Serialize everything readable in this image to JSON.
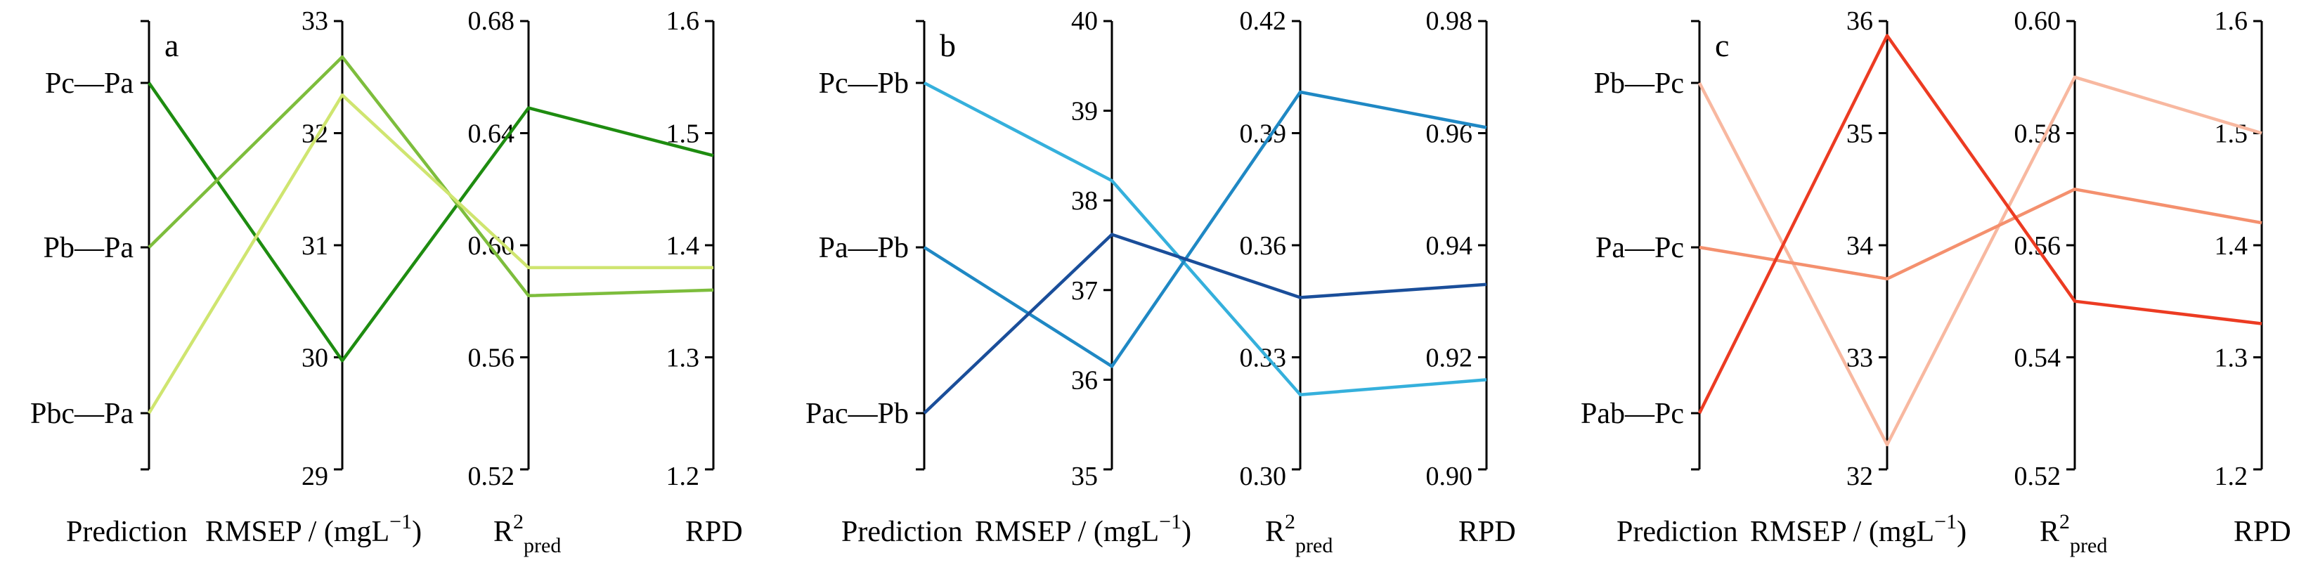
{
  "chart_data": [
    {
      "type": "parallel_coordinates",
      "panel_label": "a",
      "axes": [
        {
          "name": "Prediction",
          "label_text": "Prediction",
          "categorical": true,
          "categories_top_to_bottom": [
            "Pc—Pa",
            "Pb—Pa",
            "Pbc—Pa"
          ]
        },
        {
          "name": "RMSEP",
          "label_text": "RMSEP / (mgL",
          "label_sup": "−1",
          "label_tail": ")",
          "range": [
            29,
            33
          ],
          "ticks": [
            "29",
            "30",
            "31",
            "32",
            "33"
          ],
          "tick_values": [
            29,
            30,
            31,
            32,
            33
          ],
          "tick_side": "left"
        },
        {
          "name": "R2pred",
          "label_main": "R",
          "label_sup": "2",
          "label_sub": "pred",
          "range": [
            0.52,
            0.68
          ],
          "ticks": [
            "0.52",
            "0.56",
            "0.60",
            "0.64",
            "0.68"
          ],
          "tick_values": [
            0.52,
            0.56,
            0.6,
            0.64,
            0.68
          ],
          "tick_side": "left"
        },
        {
          "name": "RPD",
          "label_text": "RPD",
          "range": [
            1.2,
            1.6
          ],
          "ticks": [
            "1.2",
            "1.3",
            "1.4",
            "1.5",
            "1.6"
          ],
          "tick_values": [
            1.2,
            1.3,
            1.4,
            1.5,
            1.6
          ],
          "tick_side": "left"
        }
      ],
      "series": [
        {
          "name": "Pc—Pa",
          "color": "#1e8c10",
          "values": [
            29.97,
            0.649,
            1.48
          ]
        },
        {
          "name": "Pb—Pa",
          "color": "#7dbd3c",
          "values": [
            32.68,
            0.582,
            1.36
          ]
        },
        {
          "name": "Pbc—Pa",
          "color": "#cfe570",
          "values": [
            32.34,
            0.592,
            1.38
          ]
        }
      ]
    },
    {
      "type": "parallel_coordinates",
      "panel_label": "b",
      "axes": [
        {
          "name": "Prediction",
          "label_text": "Prediction",
          "categorical": true,
          "categories_top_to_bottom": [
            "Pc—Pb",
            "Pa—Pb",
            "Pac—Pb"
          ]
        },
        {
          "name": "RMSEP",
          "label_text": "RMSEP / (mgL",
          "label_sup": "−1",
          "label_tail": ")",
          "range": [
            35,
            40
          ],
          "ticks": [
            "35",
            "36",
            "37",
            "38",
            "39",
            "40"
          ],
          "tick_values": [
            35,
            36,
            37,
            38,
            39,
            40
          ],
          "tick_side": "left"
        },
        {
          "name": "R2pred",
          "label_main": "R",
          "label_sup": "2",
          "label_sub": "pred",
          "range": [
            0.3,
            0.42
          ],
          "ticks": [
            "0.30",
            "0.33",
            "0.36",
            "0.39",
            "0.42"
          ],
          "tick_values": [
            0.3,
            0.33,
            0.36,
            0.39,
            0.42
          ],
          "tick_side": "left"
        },
        {
          "name": "RPD",
          "label_text": "RPD",
          "range": [
            0.9,
            0.98
          ],
          "ticks": [
            "0.90",
            "0.92",
            "0.94",
            "0.96",
            "0.98"
          ],
          "tick_values": [
            0.9,
            0.92,
            0.94,
            0.96,
            0.98
          ],
          "tick_side": "left"
        }
      ],
      "series": [
        {
          "name": "Pc—Pb",
          "color": "#35b0dc",
          "values": [
            38.22,
            0.32,
            0.916
          ]
        },
        {
          "name": "Pa—Pb",
          "color": "#1f88c4",
          "values": [
            36.15,
            0.401,
            0.961
          ]
        },
        {
          "name": "Pac—Pb",
          "color": "#1a4e9a",
          "values": [
            37.62,
            0.346,
            0.933
          ]
        }
      ]
    },
    {
      "type": "parallel_coordinates",
      "panel_label": "c",
      "axes": [
        {
          "name": "Prediction",
          "label_text": "Prediction",
          "categorical": true,
          "categories_top_to_bottom": [
            "Pb—Pc",
            "Pa—Pc",
            "Pab—Pc"
          ]
        },
        {
          "name": "RMSEP",
          "label_text": "RMSEP / (mgL",
          "label_sup": "−1",
          "label_tail": ")",
          "range": [
            32,
            36
          ],
          "ticks": [
            "32",
            "33",
            "34",
            "35",
            "36"
          ],
          "tick_values": [
            32,
            33,
            34,
            35,
            36
          ],
          "tick_side": "left"
        },
        {
          "name": "R2pred",
          "label_main": "R",
          "label_sup": "2",
          "label_sub": "pred",
          "range": [
            0.52,
            0.6
          ],
          "ticks": [
            "0.52",
            "0.54",
            "0.56",
            "0.58",
            "0.60"
          ],
          "tick_values": [
            0.52,
            0.54,
            0.56,
            0.58,
            0.6
          ],
          "tick_side": "left",
          "large_ticks": true
        },
        {
          "name": "RPD",
          "label_text": "RPD",
          "range": [
            1.2,
            1.6
          ],
          "ticks": [
            "1.2",
            "1.3",
            "1.4",
            "1.5",
            "1.6"
          ],
          "tick_values": [
            1.2,
            1.3,
            1.4,
            1.5,
            1.6
          ],
          "tick_side": "left"
        }
      ],
      "series": [
        {
          "name": "Pb—Pc",
          "color": "#f8b8a0",
          "values": [
            32.22,
            0.59,
            1.5
          ]
        },
        {
          "name": "Pa—Pc",
          "color": "#f4906e",
          "values": [
            33.7,
            0.57,
            1.42
          ]
        },
        {
          "name": "Pab—Pc",
          "color": "#ec3b22",
          "values": [
            35.87,
            0.55,
            1.33
          ]
        }
      ]
    }
  ]
}
